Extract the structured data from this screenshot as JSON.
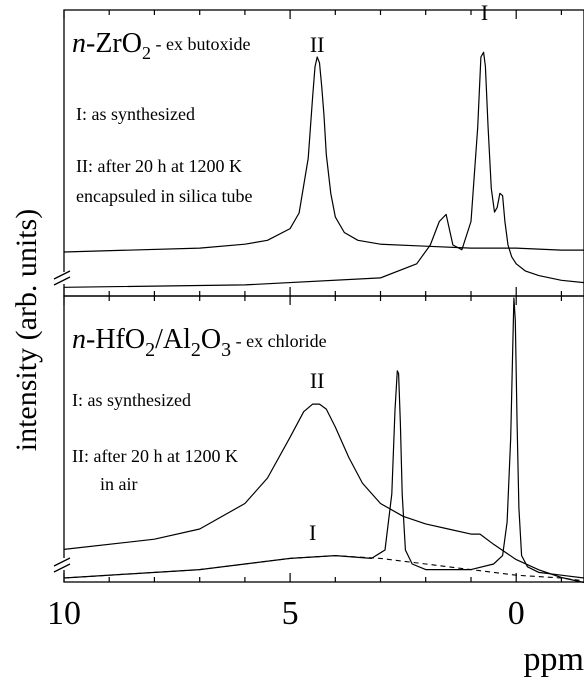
{
  "chart_data": [
    {
      "type": "line",
      "ylabel": "intensity (arb. units)",
      "xlabel": "ppm",
      "x_reversed": true,
      "xlim": [
        10,
        -1.5
      ],
      "x_ticks": [
        10,
        5,
        0
      ],
      "x_tick_labels": [
        "10",
        "5",
        "0"
      ],
      "y_scale": "arbitrary",
      "panels": [
        {
          "compound": {
            "prefix": "n",
            "text": "-ZrO",
            "sub": "2",
            "suffix": " - ex butoxide"
          },
          "annotations": [
            "I: as synthesized",
            "II: after 20 h at 1200 K",
            "encapsuled in silica tube"
          ],
          "series": [
            {
              "name": "I",
              "style": "solid",
              "x": [
                10,
                6,
                3,
                2.2,
                1.9,
                1.7,
                1.55,
                1.4,
                1.2,
                1.0,
                0.85,
                0.78,
                0.72,
                0.68,
                0.62,
                0.55,
                0.48,
                0.42,
                0.36,
                0.3,
                0.25,
                0.18,
                0.1,
                0.0,
                -0.2,
                -0.5,
                -1.0,
                -1.5
              ],
              "y": [
                0.02,
                0.03,
                0.06,
                0.12,
                0.2,
                0.3,
                0.33,
                0.2,
                0.18,
                0.3,
                0.7,
                1.0,
                1.02,
                0.96,
                0.7,
                0.44,
                0.34,
                0.36,
                0.42,
                0.41,
                0.3,
                0.2,
                0.15,
                0.12,
                0.09,
                0.07,
                0.05,
                0.04
              ]
            },
            {
              "name": "II",
              "style": "solid",
              "x": [
                10,
                7,
                6,
                5.5,
                5.0,
                4.8,
                4.6,
                4.5,
                4.45,
                4.4,
                4.35,
                4.3,
                4.25,
                4.2,
                4.1,
                4.0,
                3.8,
                3.5,
                3.0,
                2.0,
                1.0,
                0.5,
                0.0,
                -1.0,
                -1.5
              ],
              "y": [
                0.0,
                0.02,
                0.04,
                0.06,
                0.12,
                0.2,
                0.48,
                0.8,
                0.95,
                1.0,
                0.97,
                0.85,
                0.7,
                0.5,
                0.3,
                0.18,
                0.1,
                0.06,
                0.04,
                0.03,
                0.02,
                0.02,
                0.02,
                0.01,
                0.01
              ]
            }
          ],
          "peak_labels": [
            {
              "text": "II",
              "x": 4.4
            },
            {
              "text": "I",
              "x": 0.7
            }
          ]
        },
        {
          "compound": {
            "prefix": "n",
            "text": "-HfO",
            "sub": "2",
            "mid": "/Al",
            "sub2": "2",
            "mid2": "O",
            "sub3": "3",
            "suffix": " - ex chloride"
          },
          "annotations": [
            "I: as synthesized",
            "II: after 20 h at 1200 K",
            "in air"
          ],
          "series": [
            {
              "name": "I",
              "style": "solid",
              "x": [
                10,
                7,
                5,
                4,
                3.2,
                2.9,
                2.75,
                2.68,
                2.63,
                2.6,
                2.56,
                2.52,
                2.45,
                2.3,
                2.0,
                1.0,
                0.5,
                0.3,
                0.2,
                0.12,
                0.08,
                0.05,
                0.02,
                -0.02,
                -0.06,
                -0.12,
                -0.25,
                -0.5,
                -1.0,
                -1.5
              ],
              "y": [
                0.0,
                0.03,
                0.07,
                0.08,
                0.07,
                0.1,
                0.3,
                0.6,
                0.74,
                0.73,
                0.55,
                0.3,
                0.1,
                0.05,
                0.03,
                0.03,
                0.05,
                0.08,
                0.2,
                0.5,
                0.8,
                1.0,
                0.92,
                0.55,
                0.25,
                0.08,
                0.04,
                0.02,
                0.01,
                0.0
              ]
            },
            {
              "name": "I (baseline)",
              "style": "dashed",
              "x": [
                10,
                7,
                5,
                4,
                3,
                2,
                1,
                0,
                -1,
                -1.5
              ],
              "y": [
                0.0,
                0.03,
                0.07,
                0.08,
                0.07,
                0.05,
                0.03,
                0.01,
                0.0,
                -0.01
              ]
            },
            {
              "name": "II",
              "style": "solid",
              "x": [
                10,
                8,
                7,
                6,
                5.5,
                5.0,
                4.7,
                4.5,
                4.35,
                4.2,
                4.0,
                3.7,
                3.4,
                3.0,
                2.5,
                2.0,
                1.5,
                1.0,
                0.8,
                0.5,
                0.0,
                -0.5,
                -1.0,
                -1.5
              ],
              "y": [
                0.12,
                0.16,
                0.2,
                0.3,
                0.4,
                0.56,
                0.66,
                0.69,
                0.69,
                0.67,
                0.6,
                0.48,
                0.38,
                0.3,
                0.25,
                0.22,
                0.2,
                0.18,
                0.18,
                0.14,
                0.08,
                0.04,
                0.01,
                -0.01
              ]
            }
          ],
          "peak_labels": [
            {
              "text": "II",
              "x": 4.4
            },
            {
              "text": "I",
              "x": 4.5
            }
          ]
        }
      ]
    }
  ]
}
